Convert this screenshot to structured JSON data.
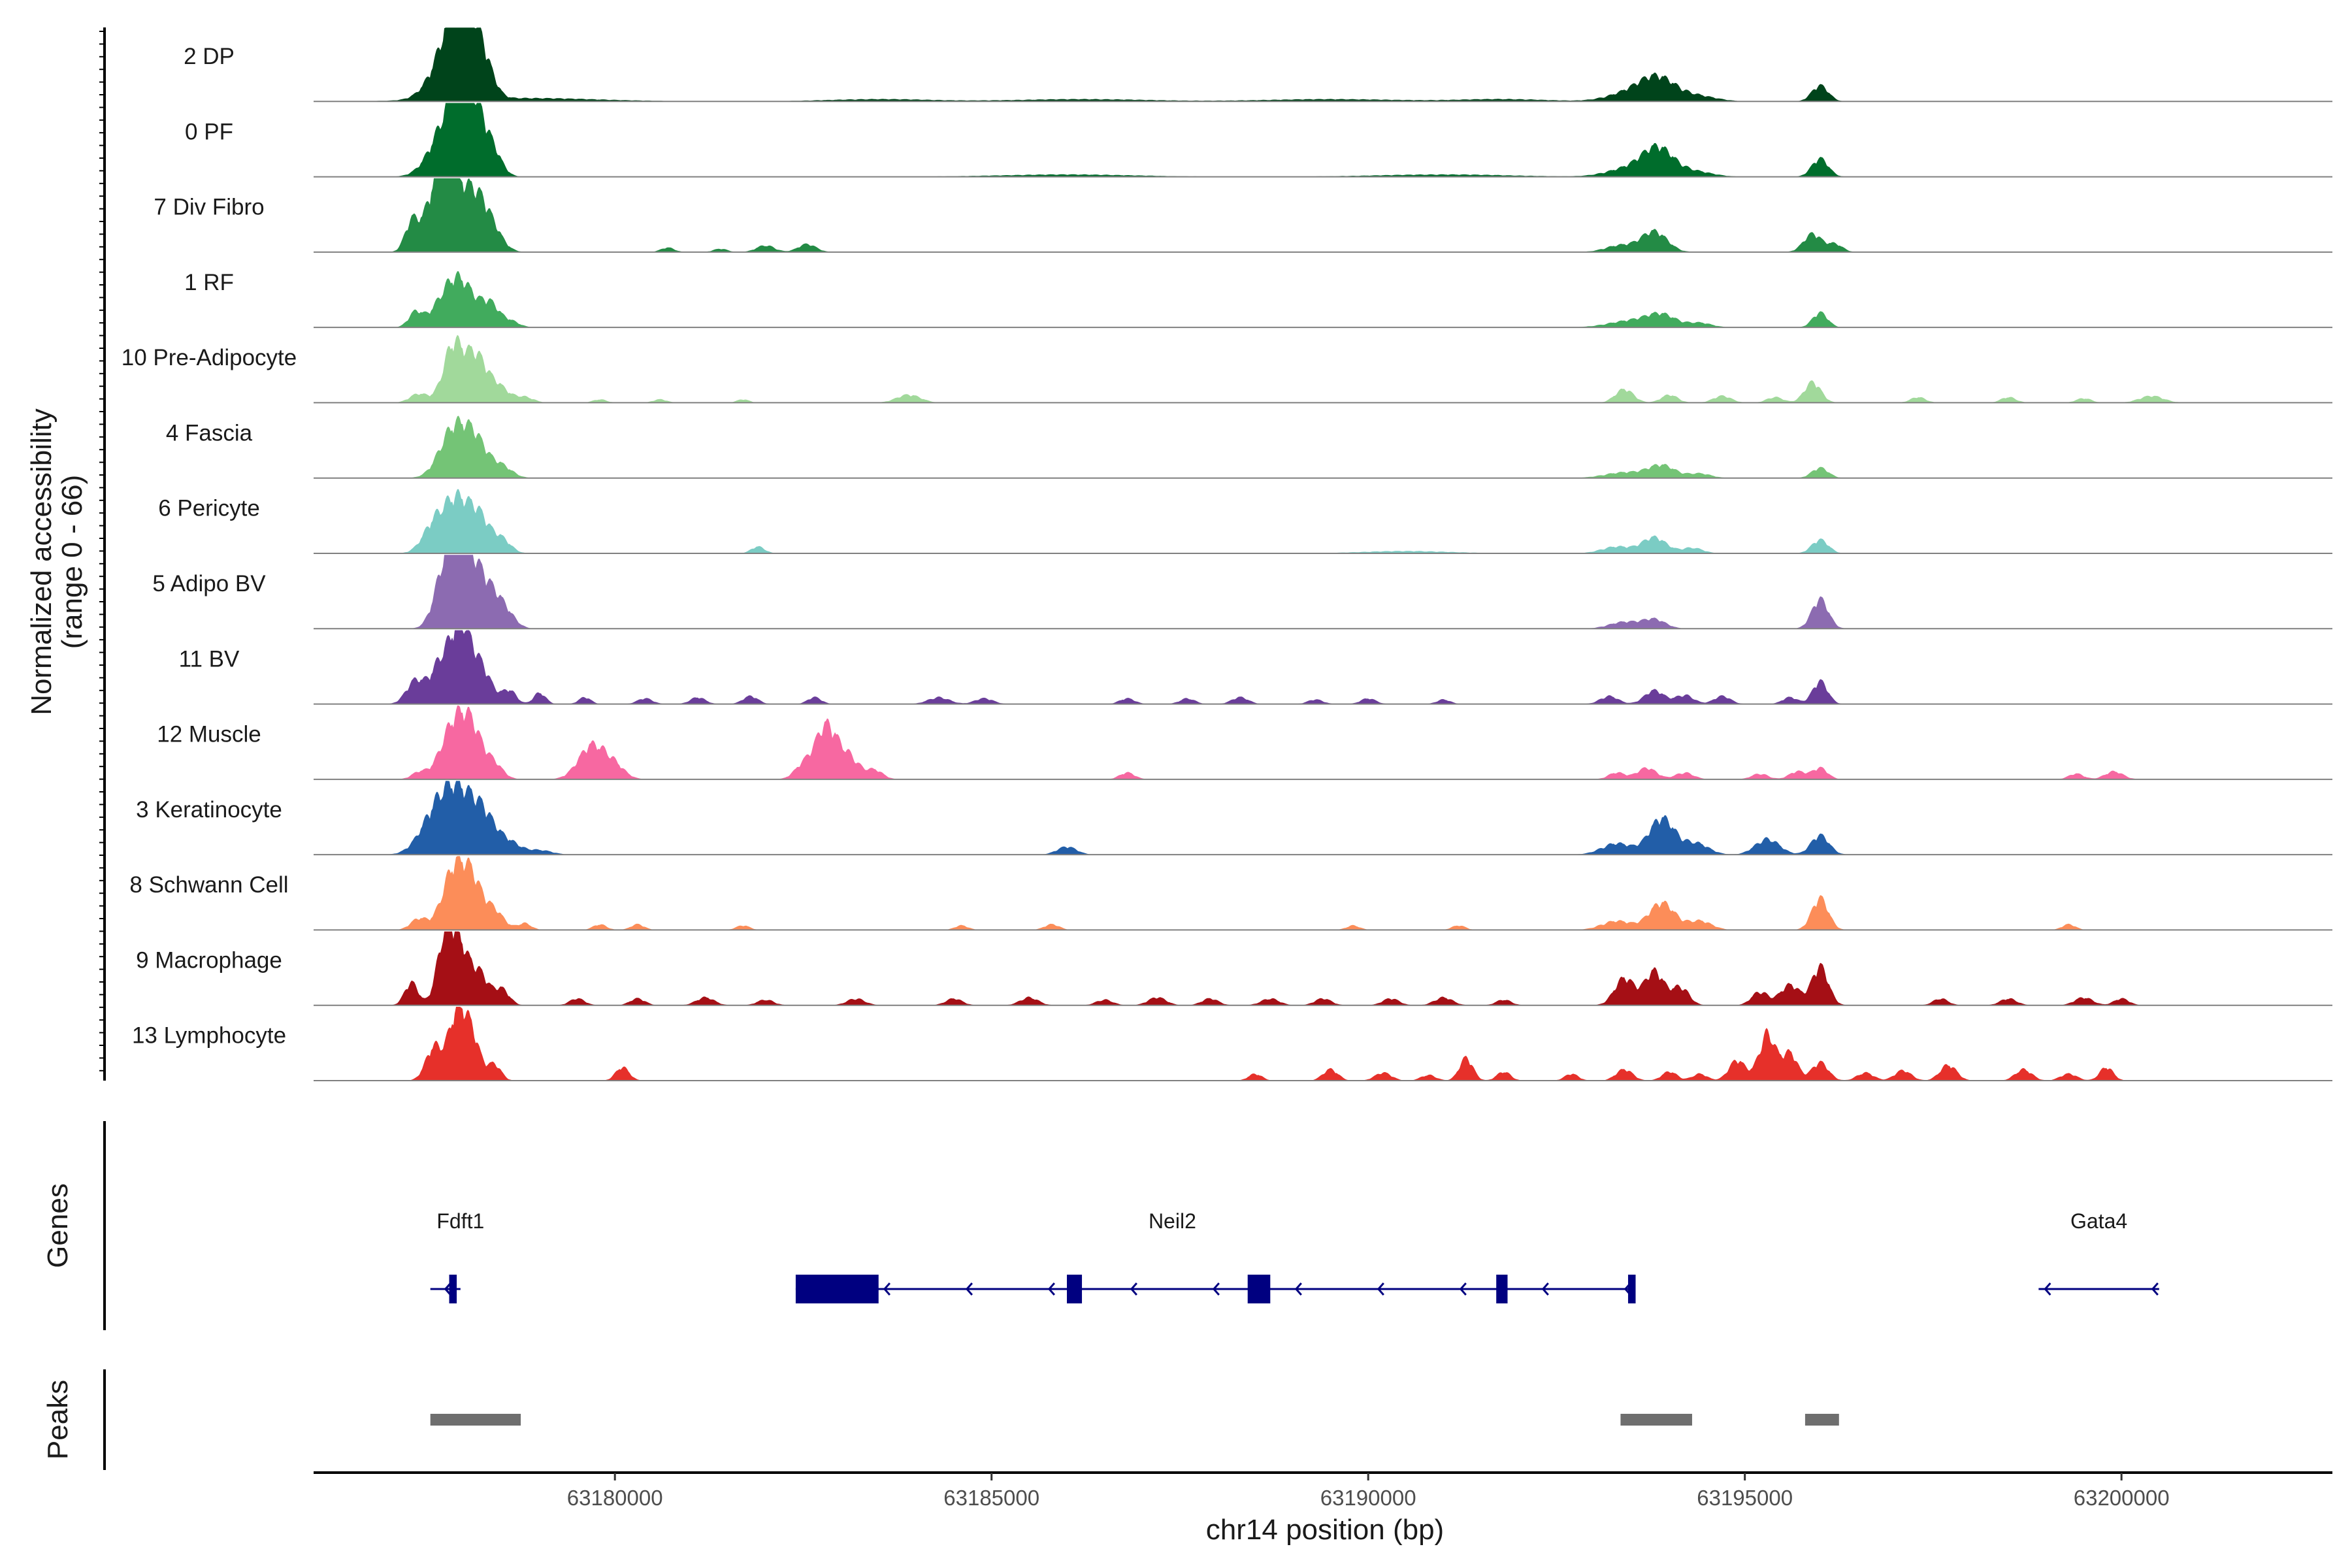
{
  "chart_data": {
    "type": "area",
    "title": "",
    "ylabel": "Normalized accessibility",
    "ylabel_range": "(range 0 - 66)",
    "ylim": [
      0,
      66
    ],
    "xlabel": "chr14 position (bp)",
    "xlim": [
      63176000,
      63202800
    ],
    "x_ticks": [
      63180000,
      63185000,
      63190000,
      63195000,
      63200000
    ],
    "x_tick_labels": [
      "63180000",
      "63185000",
      "63190000",
      "63195000",
      "63200000"
    ],
    "series": [
      {
        "name": "2 DP",
        "color": "#00441b",
        "peaks": [
          [
            63177800,
            40,
            230
          ],
          [
            63177950,
            50,
            170
          ],
          [
            63178100,
            30,
            160
          ],
          [
            63178300,
            16,
            120
          ],
          [
            63178750,
            3,
            1000
          ],
          [
            63183500,
            2,
            700
          ],
          [
            63186200,
            2,
            900
          ],
          [
            63189500,
            2,
            900
          ],
          [
            63191800,
            2,
            600
          ],
          [
            63193500,
            8,
            300
          ],
          [
            63193850,
            18,
            230
          ],
          [
            63194350,
            5,
            260
          ],
          [
            63196000,
            14,
            110
          ]
        ]
      },
      {
        "name": "0 PF",
        "color": "#006d2c",
        "peaks": [
          [
            63177780,
            45,
            220
          ],
          [
            63178000,
            55,
            160
          ],
          [
            63178200,
            28,
            150
          ],
          [
            63178400,
            14,
            120
          ],
          [
            63186000,
            2,
            900
          ],
          [
            63191000,
            2,
            900
          ],
          [
            63193500,
            8,
            300
          ],
          [
            63193850,
            22,
            200
          ],
          [
            63194300,
            5,
            250
          ],
          [
            63196000,
            16,
            110
          ]
        ]
      },
      {
        "name": "7 Div Fibro",
        "color": "#238b45",
        "peaks": [
          [
            63177300,
            25,
            90
          ],
          [
            63177600,
            45,
            140
          ],
          [
            63177800,
            66,
            130
          ],
          [
            63178100,
            48,
            160
          ],
          [
            63178350,
            20,
            150
          ],
          [
            63180700,
            4,
            90
          ],
          [
            63181400,
            3,
            90
          ],
          [
            63182000,
            6,
            120
          ],
          [
            63182550,
            7,
            120
          ],
          [
            63193350,
            6,
            200
          ],
          [
            63193800,
            18,
            170
          ],
          [
            63195900,
            16,
            120
          ],
          [
            63196200,
            7,
            100
          ]
        ]
      },
      {
        "name": "1 RF",
        "color": "#41ab5d",
        "peaks": [
          [
            63177350,
            12,
            90
          ],
          [
            63177900,
            45,
            230
          ],
          [
            63178350,
            16,
            110
          ],
          [
            63178600,
            6,
            120
          ],
          [
            63193500,
            6,
            300
          ],
          [
            63193900,
            10,
            190
          ],
          [
            63194400,
            4,
            160
          ],
          [
            63196000,
            13,
            100
          ]
        ]
      },
      {
        "name": "10 Pre-Adipocyte",
        "color": "#a1d99b",
        "peaks": [
          [
            63177400,
            8,
            120
          ],
          [
            63177850,
            50,
            130
          ],
          [
            63178150,
            40,
            140
          ],
          [
            63178450,
            14,
            140
          ],
          [
            63178800,
            5,
            120
          ],
          [
            63179800,
            3,
            90
          ],
          [
            63180600,
            3,
            90
          ],
          [
            63181700,
            3,
            80
          ],
          [
            63183900,
            7,
            160
          ],
          [
            63193400,
            12,
            120
          ],
          [
            63194000,
            7,
            110
          ],
          [
            63194700,
            6,
            120
          ],
          [
            63195400,
            5,
            110
          ],
          [
            63195900,
            18,
            110
          ],
          [
            63197300,
            5,
            100
          ],
          [
            63198500,
            5,
            100
          ],
          [
            63199500,
            4,
            100
          ],
          [
            63200400,
            6,
            160
          ]
        ]
      },
      {
        "name": "4 Fascia",
        "color": "#74c476",
        "peaks": [
          [
            63177850,
            42,
            180
          ],
          [
            63178150,
            30,
            160
          ],
          [
            63178500,
            10,
            140
          ],
          [
            63193400,
            5,
            260
          ],
          [
            63193900,
            11,
            180
          ],
          [
            63194400,
            4,
            150
          ],
          [
            63196000,
            9,
            110
          ]
        ]
      },
      {
        "name": "6 Pericyte",
        "color": "#7bccc4",
        "peaks": [
          [
            63177600,
            25,
            150
          ],
          [
            63177900,
            45,
            160
          ],
          [
            63178200,
            30,
            140
          ],
          [
            63178500,
            12,
            120
          ],
          [
            63181900,
            6,
            90
          ],
          [
            63190500,
            2,
            600
          ],
          [
            63193300,
            6,
            200
          ],
          [
            63193800,
            14,
            160
          ],
          [
            63194300,
            5,
            140
          ],
          [
            63196000,
            12,
            110
          ]
        ]
      },
      {
        "name": "5 Adipo BV",
        "color": "#8c6bb1",
        "peaks": [
          [
            63177750,
            50,
            140
          ],
          [
            63178000,
            64,
            160
          ],
          [
            63178300,
            32,
            160
          ],
          [
            63178550,
            12,
            130
          ],
          [
            63193400,
            6,
            200
          ],
          [
            63193800,
            8,
            150
          ],
          [
            63196000,
            26,
            110
          ]
        ]
      },
      {
        "name": "11 BV",
        "color": "#6a3d9a",
        "peaks": [
          [
            63177350,
            20,
            120
          ],
          [
            63177700,
            38,
            140
          ],
          [
            63177950,
            60,
            120
          ],
          [
            63178200,
            34,
            150
          ],
          [
            63178600,
            12,
            90
          ],
          [
            63179000,
            10,
            80
          ],
          [
            63179600,
            6,
            80
          ],
          [
            63180400,
            5,
            100
          ],
          [
            63181100,
            6,
            100
          ],
          [
            63181800,
            7,
            100
          ],
          [
            63182650,
            6,
            90
          ],
          [
            63184300,
            6,
            140
          ],
          [
            63184900,
            5,
            120
          ],
          [
            63186800,
            5,
            100
          ],
          [
            63187600,
            5,
            100
          ],
          [
            63188300,
            6,
            110
          ],
          [
            63189300,
            4,
            100
          ],
          [
            63190000,
            5,
            100
          ],
          [
            63191000,
            4,
            90
          ],
          [
            63193200,
            7,
            120
          ],
          [
            63193800,
            12,
            130
          ],
          [
            63194200,
            8,
            120
          ],
          [
            63194700,
            7,
            110
          ],
          [
            63195600,
            6,
            100
          ],
          [
            63196000,
            20,
            100
          ]
        ]
      },
      {
        "name": "12 Muscle",
        "color": "#f768a1",
        "peaks": [
          [
            63177400,
            6,
            100
          ],
          [
            63177850,
            45,
            170
          ],
          [
            63178100,
            38,
            150
          ],
          [
            63178400,
            12,
            120
          ],
          [
            63179700,
            30,
            180
          ],
          [
            63180000,
            10,
            140
          ],
          [
            63182500,
            12,
            120
          ],
          [
            63182800,
            46,
            140
          ],
          [
            63183100,
            20,
            140
          ],
          [
            63183450,
            8,
            110
          ],
          [
            63186800,
            6,
            100
          ],
          [
            63193300,
            6,
            110
          ],
          [
            63193700,
            10,
            130
          ],
          [
            63194200,
            6,
            120
          ],
          [
            63195200,
            5,
            110
          ],
          [
            63195700,
            7,
            110
          ],
          [
            63196000,
            10,
            100
          ],
          [
            63199400,
            5,
            100
          ],
          [
            63199900,
            7,
            120
          ]
        ]
      },
      {
        "name": "3 Keratinocyte",
        "color": "#225ea8",
        "peaks": [
          [
            63177600,
            30,
            200
          ],
          [
            63177900,
            50,
            200
          ],
          [
            63178250,
            32,
            170
          ],
          [
            63178600,
            10,
            150
          ],
          [
            63179000,
            4,
            160
          ],
          [
            63186000,
            7,
            130
          ],
          [
            63193300,
            10,
            200
          ],
          [
            63193900,
            32,
            170
          ],
          [
            63194350,
            10,
            170
          ],
          [
            63195300,
            14,
            160
          ],
          [
            63196000,
            17,
            120
          ]
        ]
      },
      {
        "name": "8 Schwann Cell",
        "color": "#fc8d59",
        "peaks": [
          [
            63177400,
            10,
            110
          ],
          [
            63177850,
            50,
            150
          ],
          [
            63178100,
            40,
            140
          ],
          [
            63178400,
            16,
            130
          ],
          [
            63178800,
            6,
            90
          ],
          [
            63179800,
            5,
            90
          ],
          [
            63180300,
            5,
            90
          ],
          [
            63181700,
            4,
            90
          ],
          [
            63184600,
            4,
            90
          ],
          [
            63185800,
            5,
            100
          ],
          [
            63189800,
            4,
            90
          ],
          [
            63191200,
            4,
            90
          ],
          [
            63193300,
            8,
            200
          ],
          [
            63193900,
            24,
            170
          ],
          [
            63194400,
            8,
            160
          ],
          [
            63196000,
            28,
            110
          ],
          [
            63199300,
            5,
            90
          ]
        ]
      },
      {
        "name": "9 Macrophage",
        "color": "#a50f15",
        "peaks": [
          [
            63177300,
            20,
            90
          ],
          [
            63177750,
            62,
            110
          ],
          [
            63177950,
            45,
            110
          ],
          [
            63178200,
            28,
            120
          ],
          [
            63178500,
            14,
            100
          ],
          [
            63179500,
            6,
            100
          ],
          [
            63180300,
            6,
            100
          ],
          [
            63181200,
            7,
            120
          ],
          [
            63182000,
            5,
            110
          ],
          [
            63183200,
            6,
            120
          ],
          [
            63184500,
            6,
            110
          ],
          [
            63185500,
            7,
            120
          ],
          [
            63186500,
            5,
            110
          ],
          [
            63187200,
            7,
            120
          ],
          [
            63187900,
            6,
            110
          ],
          [
            63188700,
            6,
            120
          ],
          [
            63189400,
            6,
            110
          ],
          [
            63190300,
            6,
            110
          ],
          [
            63191000,
            7,
            120
          ],
          [
            63191800,
            5,
            100
          ],
          [
            63193400,
            24,
            130
          ],
          [
            63193800,
            30,
            130
          ],
          [
            63194150,
            16,
            110
          ],
          [
            63195200,
            12,
            110
          ],
          [
            63195600,
            18,
            130
          ],
          [
            63196000,
            34,
            110
          ],
          [
            63197600,
            6,
            100
          ],
          [
            63198500,
            6,
            110
          ],
          [
            63199500,
            7,
            120
          ],
          [
            63200000,
            6,
            100
          ]
        ]
      },
      {
        "name": "13 Lymphocyte",
        "color": "#e6302a",
        "peaks": [
          [
            63177600,
            30,
            110
          ],
          [
            63177900,
            58,
            110
          ],
          [
            63178100,
            38,
            110
          ],
          [
            63178400,
            14,
            90
          ],
          [
            63180100,
            12,
            90
          ],
          [
            63188500,
            6,
            90
          ],
          [
            63189500,
            10,
            100
          ],
          [
            63190200,
            7,
            110
          ],
          [
            63190800,
            5,
            100
          ],
          [
            63191300,
            20,
            90
          ],
          [
            63191800,
            8,
            90
          ],
          [
            63192700,
            6,
            90
          ],
          [
            63193400,
            10,
            110
          ],
          [
            63194000,
            8,
            100
          ],
          [
            63194400,
            6,
            100
          ],
          [
            63194900,
            18,
            110
          ],
          [
            63195300,
            42,
            110
          ],
          [
            63195600,
            24,
            100
          ],
          [
            63196000,
            16,
            110
          ],
          [
            63196600,
            7,
            110
          ],
          [
            63197100,
            9,
            110
          ],
          [
            63197700,
            14,
            110
          ],
          [
            63198700,
            10,
            110
          ],
          [
            63199300,
            6,
            110
          ],
          [
            63199800,
            12,
            90
          ]
        ]
      }
    ],
    "genes_label": "Genes",
    "genes": [
      {
        "name": "Fdft1",
        "start": 63177550,
        "end": 63177950,
        "strand": "-",
        "exons": [
          [
            63177800,
            63177900
          ]
        ],
        "label_x": 63177950
      },
      {
        "name": "Neil2",
        "start": 63182400,
        "end": 63193500,
        "strand": "-",
        "exons": [
          [
            63182400,
            63183500
          ],
          [
            63186000,
            63186200
          ],
          [
            63188400,
            63188700
          ],
          [
            63191700,
            63191850
          ],
          [
            63193450,
            63193550
          ]
        ],
        "label_x": 63187400
      },
      {
        "name": "Gata4",
        "start": 63198900,
        "end": 63200500,
        "strand": "-",
        "exons": [],
        "label_x": 63199700
      }
    ],
    "peaks_label": "Peaks",
    "peak_regions": [
      [
        63177550,
        63178750
      ],
      [
        63193350,
        63194300
      ],
      [
        63195800,
        63196250
      ]
    ]
  }
}
